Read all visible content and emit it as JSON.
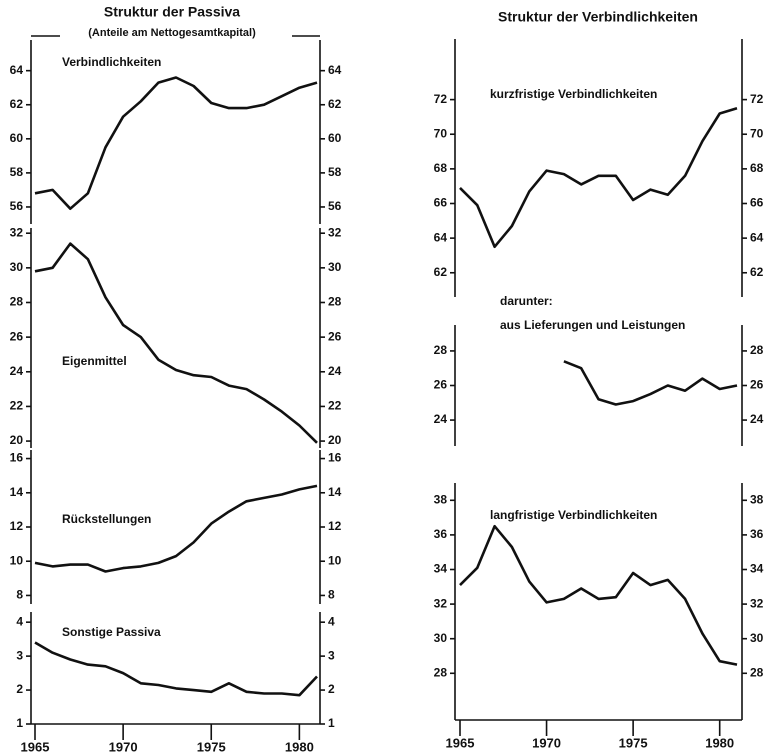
{
  "left": {
    "title": "Struktur der Passiva",
    "subtitle": "(Anteile am Nettogesamtkapital)"
  },
  "right": {
    "title": "Struktur der Verbindlichkeiten"
  },
  "chart_data": [
    {
      "type": "line",
      "labels": [
        "Verbindlichkeiten"
      ],
      "color": "#111111",
      "xlim": [
        1965,
        1981
      ],
      "x": [
        1965,
        1966,
        1967,
        1968,
        1969,
        1970,
        1971,
        1972,
        1973,
        1974,
        1975,
        1976,
        1977,
        1978,
        1979,
        1980,
        1981
      ],
      "values": [
        56.8,
        57.0,
        55.9,
        56.8,
        59.5,
        61.3,
        62.2,
        63.3,
        63.6,
        63.1,
        62.1,
        61.8,
        61.8,
        62.0,
        62.5,
        63.0,
        63.3
      ],
      "ylim": [
        55,
        65.8
      ],
      "yticks": [
        56,
        58,
        60,
        62,
        64
      ]
    },
    {
      "type": "line",
      "labels": [
        "Eigenmittel"
      ],
      "color": "#111111",
      "xlim": [
        1965,
        1981
      ],
      "x": [
        1965,
        1966,
        1967,
        1968,
        1969,
        1970,
        1971,
        1972,
        1973,
        1974,
        1975,
        1976,
        1977,
        1978,
        1979,
        1980,
        1981
      ],
      "values": [
        29.8,
        30.0,
        31.4,
        30.5,
        28.3,
        26.7,
        26.0,
        24.7,
        24.1,
        23.8,
        23.7,
        23.2,
        23.0,
        22.4,
        21.7,
        20.9,
        19.9
      ],
      "ylim": [
        19.6,
        32.3
      ],
      "yticks": [
        20,
        22,
        24,
        26,
        28,
        30,
        32
      ]
    },
    {
      "type": "line",
      "labels": [
        "Rückstellungen"
      ],
      "color": "#111111",
      "xlim": [
        1965,
        1981
      ],
      "x": [
        1965,
        1966,
        1967,
        1968,
        1969,
        1970,
        1971,
        1972,
        1973,
        1974,
        1975,
        1976,
        1977,
        1978,
        1979,
        1980,
        1981
      ],
      "values": [
        9.9,
        9.7,
        9.8,
        9.8,
        9.4,
        9.6,
        9.7,
        9.9,
        10.3,
        11.1,
        12.2,
        12.9,
        13.5,
        13.7,
        13.9,
        14.2,
        14.4
      ],
      "ylim": [
        7.5,
        16.5
      ],
      "yticks": [
        8,
        10,
        12,
        14,
        16
      ]
    },
    {
      "type": "line",
      "labels": [
        "Sonstige Passiva"
      ],
      "color": "#111111",
      "xlim": [
        1965,
        1981
      ],
      "x": [
        1965,
        1966,
        1967,
        1968,
        1969,
        1970,
        1971,
        1972,
        1973,
        1974,
        1975,
        1976,
        1977,
        1978,
        1979,
        1980,
        1981
      ],
      "values": [
        3.4,
        3.1,
        2.9,
        2.75,
        2.7,
        2.5,
        2.2,
        2.15,
        2.05,
        2.0,
        1.95,
        2.2,
        1.95,
        1.9,
        1.9,
        1.85,
        2.4
      ],
      "ylim": [
        1,
        4.3
      ],
      "yticks": [
        1,
        2,
        3,
        4
      ],
      "xticks": [
        {
          "value": 1965,
          "label": "1965"
        },
        6,
        7,
        8,
        9,
        {
          "value": 1970,
          "label": "1970"
        },
        1,
        2,
        3,
        4,
        {
          "value": 1975,
          "label": "1975"
        },
        6,
        7,
        8,
        9,
        {
          "value": 1980,
          "label": "1980"
        },
        1
      ]
    },
    {
      "type": "line",
      "labels": [
        "kurzfristige Verbindlichkeiten"
      ],
      "color": "#111111",
      "xlim": [
        1965,
        1981
      ],
      "x": [
        1965,
        1966,
        1967,
        1968,
        1969,
        1970,
        1971,
        1972,
        1973,
        1974,
        1975,
        1976,
        1977,
        1978,
        1979,
        1980,
        1981
      ],
      "values": [
        66.9,
        65.9,
        63.5,
        64.7,
        66.7,
        67.9,
        67.7,
        67.1,
        67.6,
        67.6,
        66.2,
        66.8,
        66.5,
        67.6,
        69.6,
        71.2,
        71.5
      ],
      "ylim": [
        60.6,
        75.5
      ],
      "yticks": [
        62,
        64,
        66,
        68,
        70,
        72
      ]
    },
    {
      "type": "line",
      "labels": [
        "darunter:",
        "aus Lieferungen und Leistungen"
      ],
      "color": "#111111",
      "xlim": [
        1965,
        1981
      ],
      "x": [
        1965,
        1966,
        1967,
        1968,
        1969,
        1970,
        1971,
        1972,
        1973,
        1974,
        1975,
        1976,
        1977,
        1978,
        1979,
        1980,
        1981
      ],
      "values": [
        null,
        null,
        null,
        null,
        null,
        null,
        27.4,
        27.0,
        25.2,
        24.9,
        25.1,
        25.5,
        26.0,
        25.7,
        26.4,
        25.8,
        26.0
      ],
      "ylim": [
        22.5,
        29.5
      ],
      "yticks": [
        24,
        26,
        28
      ]
    },
    {
      "type": "line",
      "labels": [
        "langfristige Verbindlichkeiten"
      ],
      "color": "#111111",
      "xlim": [
        1965,
        1981
      ],
      "x": [
        1965,
        1966,
        1967,
        1968,
        1969,
        1970,
        1971,
        1972,
        1973,
        1974,
        1975,
        1976,
        1977,
        1978,
        1979,
        1980,
        1981
      ],
      "values": [
        33.1,
        34.1,
        36.5,
        35.3,
        33.3,
        32.1,
        32.3,
        32.9,
        32.3,
        32.4,
        33.8,
        33.1,
        33.4,
        32.3,
        30.3,
        28.7,
        28.5
      ],
      "ylim": [
        25.3,
        39
      ],
      "yticks": [
        28,
        30,
        32,
        34,
        36,
        38
      ],
      "xticks": [
        {
          "value": 1965,
          "label": "1965"
        },
        6,
        7,
        8,
        9,
        {
          "value": 1970,
          "label": "1970"
        },
        1,
        2,
        3,
        4,
        {
          "value": 1975,
          "label": "1975"
        },
        6,
        7,
        8,
        9,
        {
          "value": 1980,
          "label": "1980"
        },
        1
      ]
    }
  ]
}
